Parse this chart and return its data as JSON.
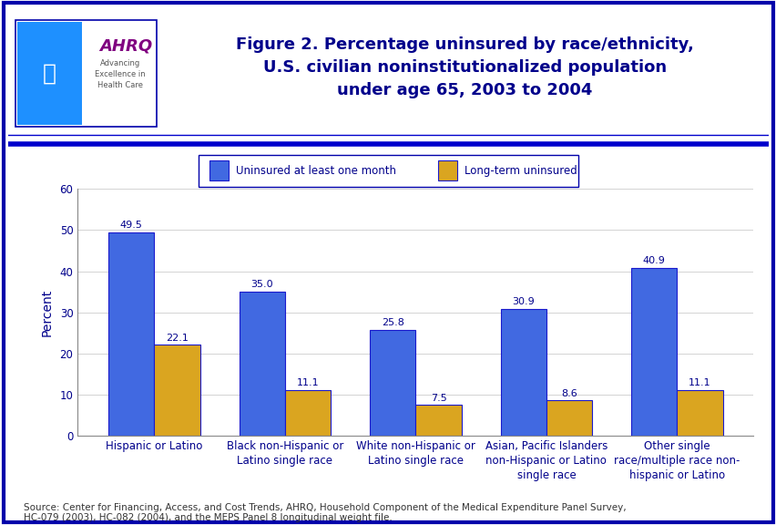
{
  "title_line1": "Figure 2. Percentage uninsured by race/ethnicity,",
  "title_line2": "U.S. civilian noninstitutionalized population",
  "title_line3": "under age 65, 2003 to 2004",
  "categories": [
    "Hispanic or Latino",
    "Black non-Hispanic or\nLatino single race",
    "White non-Hispanic or\nLatino single race",
    "Asian, Pacific Islanders\nnon-Hispanic or Latino\nsingle race",
    "Other single\nrace/multiple race non-\nhispanic or Latino"
  ],
  "series1_label": "Uninsured at least one month",
  "series2_label": "Long-term uninsured",
  "series1_values": [
    49.5,
    35.0,
    25.8,
    30.9,
    40.9
  ],
  "series2_values": [
    22.1,
    11.1,
    7.5,
    8.6,
    11.1
  ],
  "series1_color": "#4169E1",
  "series2_color": "#DAA520",
  "bar_edge_color": "#1a1acd",
  "ylabel": "Percent",
  "ylim": [
    0,
    60
  ],
  "yticks": [
    0,
    10,
    20,
    30,
    40,
    50,
    60
  ],
  "source_text": "Source: Center for Financing, Access, and Cost Trends, AHRQ, Household Component of the Medical Expenditure Panel Survey,\nHC-079 (2003), HC-082 (2004), and the MEPS Panel 8 longitudinal weight file.",
  "title_color": "#00008B",
  "axis_label_color": "#00008B",
  "tick_label_color": "#00008B",
  "background_color": "#FFFFFF",
  "border_color": "#0000AA",
  "header_line_color": "#0000CC",
  "bar_width": 0.35,
  "title_fontsize": 13,
  "axis_fontsize": 10,
  "tick_fontsize": 8.5,
  "legend_fontsize": 8.5,
  "source_fontsize": 7.5,
  "value_fontsize": 8,
  "logo_box_color": "#1E90FF",
  "ahrq_text_color": "#800080"
}
